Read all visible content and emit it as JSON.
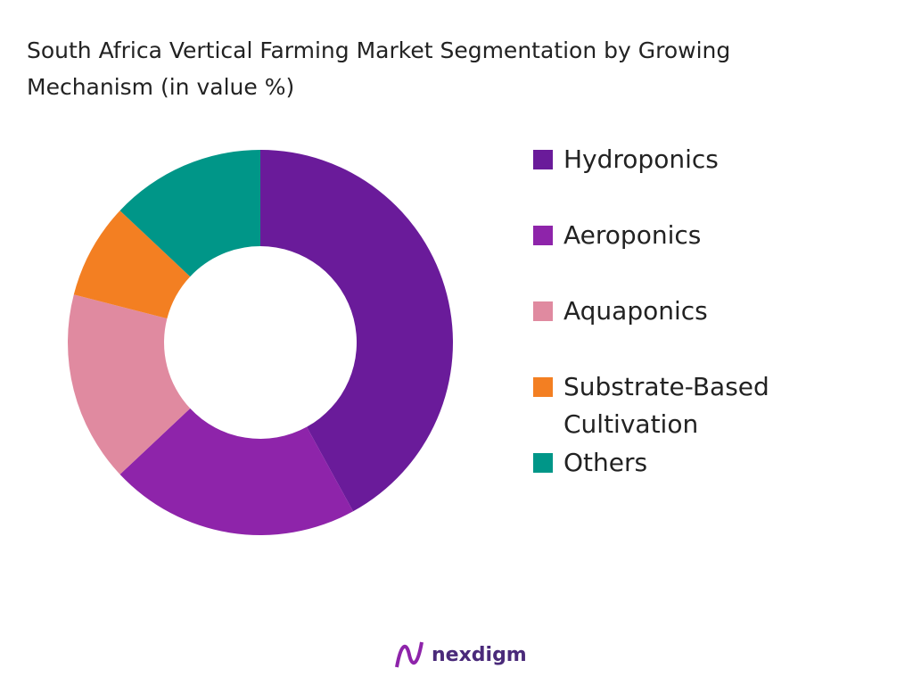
{
  "chart_data": {
    "type": "donut",
    "title": "South Africa Vertical Farming Market Segmentation by Growing Mechanism (in value %)",
    "categories": [
      "Hydroponics",
      "Aeroponics",
      "Aquaponics",
      "Substrate-Based Cultivation",
      "Others"
    ],
    "values": [
      42,
      21,
      16,
      8,
      13
    ],
    "colors": [
      "#6a1b9a",
      "#8e24aa",
      "#e08aa0",
      "#f37f22",
      "#009688"
    ],
    "legend": "right"
  },
  "brand": "nexdigm"
}
